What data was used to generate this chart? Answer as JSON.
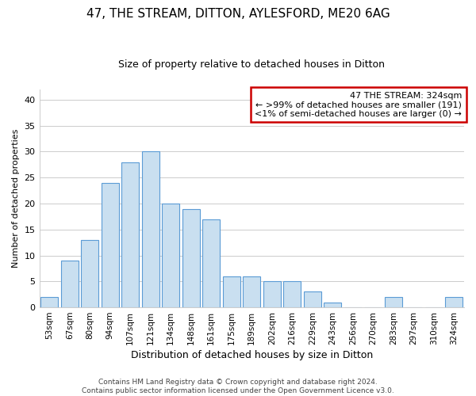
{
  "title": "47, THE STREAM, DITTON, AYLESFORD, ME20 6AG",
  "subtitle": "Size of property relative to detached houses in Ditton",
  "xlabel": "Distribution of detached houses by size in Ditton",
  "ylabel": "Number of detached properties",
  "categories": [
    "53sqm",
    "67sqm",
    "80sqm",
    "94sqm",
    "107sqm",
    "121sqm",
    "134sqm",
    "148sqm",
    "161sqm",
    "175sqm",
    "189sqm",
    "202sqm",
    "216sqm",
    "229sqm",
    "243sqm",
    "256sqm",
    "270sqm",
    "283sqm",
    "297sqm",
    "310sqm",
    "324sqm"
  ],
  "values": [
    2,
    9,
    13,
    24,
    28,
    30,
    20,
    19,
    17,
    6,
    6,
    5,
    5,
    3,
    1,
    0,
    0,
    2,
    0,
    0,
    2
  ],
  "bar_color": "#c9dff0",
  "bar_edge_color": "#5b9bd5",
  "highlight_index": 20,
  "ylim": [
    0,
    42
  ],
  "yticks": [
    0,
    5,
    10,
    15,
    20,
    25,
    30,
    35,
    40
  ],
  "annotation_title": "47 THE STREAM: 324sqm",
  "annotation_line1": "← >99% of detached houses are smaller (191)",
  "annotation_line2": "<1% of semi-detached houses are larger (0) →",
  "annotation_box_color": "#ffffff",
  "annotation_box_edge_color": "#cc0000",
  "footer_line1": "Contains HM Land Registry data © Crown copyright and database right 2024.",
  "footer_line2": "Contains public sector information licensed under the Open Government Licence v3.0.",
  "background_color": "#ffffff",
  "grid_color": "#cccccc",
  "title_fontsize": 11,
  "subtitle_fontsize": 9,
  "xlabel_fontsize": 9,
  "ylabel_fontsize": 8
}
